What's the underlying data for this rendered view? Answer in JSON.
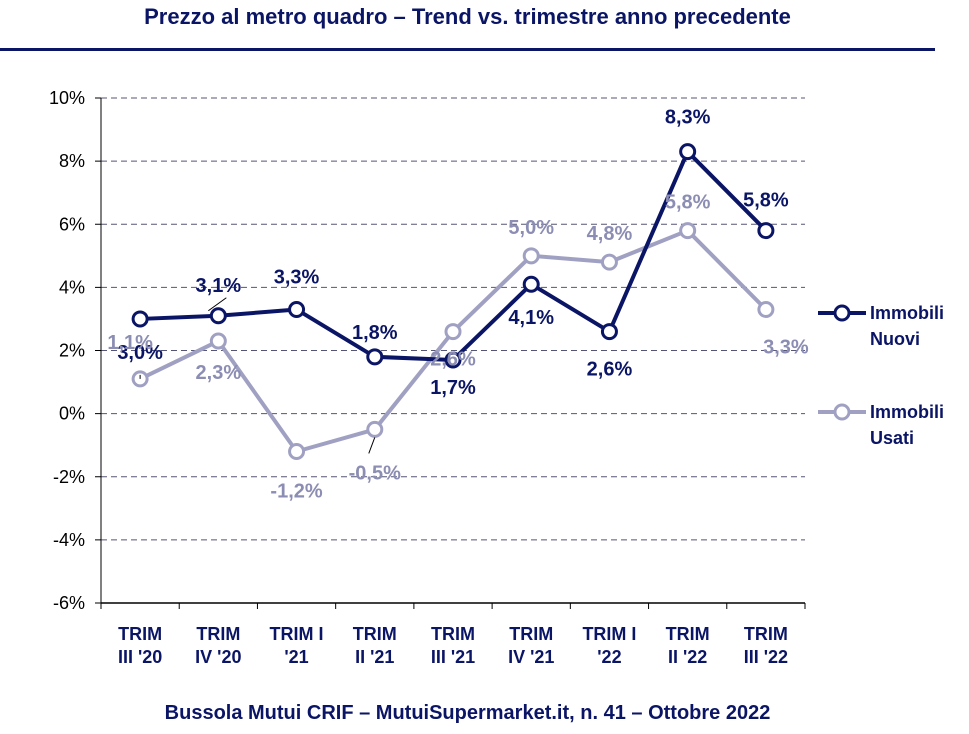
{
  "header": {
    "title": "Prezzo al metro quadro – Trend vs. trimestre anno precedente"
  },
  "footer": {
    "text": "Bussola Mutui CRIF – MutuiSupermarket.it, n. 41 – Ottobre 2022"
  },
  "colors": {
    "nuovi": "#0b1565",
    "usati": "#a0a1c2",
    "grid": "#555577",
    "navy": "#0b1565"
  },
  "chart_data": {
    "type": "line",
    "title": "Prezzo al metro quadro – Trend vs. trimestre anno precedente",
    "categories": [
      [
        "TRIM",
        "III '20"
      ],
      [
        "TRIM",
        "IV '20"
      ],
      [
        "TRIM I",
        "'21"
      ],
      [
        "TRIM",
        "II '21"
      ],
      [
        "TRIM",
        "III '21"
      ],
      [
        "TRIM",
        "IV '21"
      ],
      [
        "TRIM I",
        "'22"
      ],
      [
        "TRIM",
        "II '22"
      ],
      [
        "TRIM",
        "III '22"
      ]
    ],
    "ylim": [
      -6,
      10
    ],
    "yticks": [
      -6,
      -4,
      -2,
      0,
      2,
      4,
      6,
      8,
      10
    ],
    "ytick_labels": [
      "-6%",
      "-4%",
      "-2%",
      "0%",
      "2%",
      "4%",
      "6%",
      "8%",
      "10%"
    ],
    "grid": true,
    "legend_position": "right",
    "series": [
      {
        "name": "Immobili Nuovi",
        "legend_lines": [
          "Immobili",
          "Nuovi"
        ],
        "values": [
          3.0,
          3.1,
          3.3,
          1.8,
          1.7,
          4.1,
          2.6,
          8.3,
          5.8
        ],
        "labels": [
          "3,0%",
          "3,1%",
          "3,3%",
          "1,8%",
          "1,7%",
          "4,1%",
          "2,6%",
          "8,3%",
          "5,8%"
        ]
      },
      {
        "name": "Immobili Usati",
        "legend_lines": [
          "Immobili",
          "Usati"
        ],
        "values": [
          1.1,
          2.3,
          -1.2,
          -0.5,
          2.6,
          5.0,
          4.8,
          5.8,
          3.3
        ],
        "labels": [
          "1,1%",
          "2,3%",
          "-1,2%",
          "-0,5%",
          "2,6%",
          "5,0%",
          "4,8%",
          "5,8%",
          "3,3%"
        ]
      }
    ]
  }
}
